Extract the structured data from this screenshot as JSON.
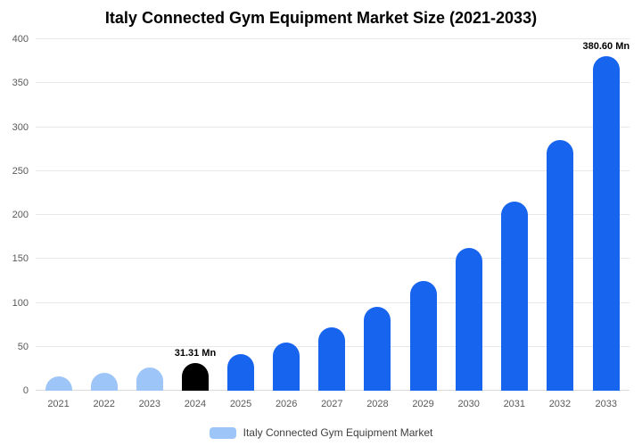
{
  "chart_data": {
    "type": "bar",
    "title": "Italy Connected Gym Equipment Market Size (2021-2033)",
    "categories": [
      "2021",
      "2022",
      "2023",
      "2024",
      "2025",
      "2026",
      "2027",
      "2028",
      "2029",
      "2030",
      "2031",
      "2032",
      "2033"
    ],
    "values": [
      16,
      20.5,
      26,
      31.31,
      41.5,
      54.5,
      72,
      95,
      125,
      162.5,
      215,
      285,
      380.6
    ],
    "unit": "Mn",
    "ylim": [
      0,
      400
    ],
    "ytick_interval": 50,
    "ytick_labels": [
      "0",
      "50",
      "100",
      "150",
      "200",
      "250",
      "300",
      "350",
      "400"
    ],
    "grid": true,
    "legend_position": "bottom",
    "bar_colors": [
      "#9ec5f8",
      "#9ec5f8",
      "#9ec5f8",
      "#000000",
      "#1765ef",
      "#1765ef",
      "#1765ef",
      "#1765ef",
      "#1765ef",
      "#1765ef",
      "#1765ef",
      "#1765ef",
      "#1765ef"
    ],
    "annotations": [
      {
        "index": 3,
        "text": "31.31 Mn"
      },
      {
        "index": 12,
        "text": "380.60 Mn"
      }
    ]
  },
  "legend": {
    "label": "Italy Connected Gym Equipment Market",
    "swatch_color": "#9ec5f8"
  },
  "colors": {
    "past_bar": "#9ec5f8",
    "highlight_bar": "#000000",
    "forecast_bar": "#1765ef",
    "gridline": "#e8e8e8",
    "axis_text": "#595959",
    "title_text": "#000000"
  }
}
